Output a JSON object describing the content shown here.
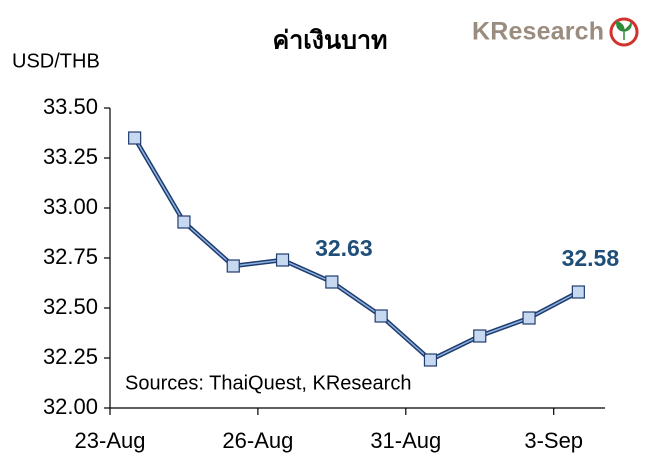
{
  "chart_data": {
    "type": "line",
    "title": "ค่าเงินบาท",
    "y_label": "USD/THB",
    "logo": "KResearch",
    "annotation": "Sources: ThaiQuest, KResearch",
    "categories": [
      "23-Aug",
      null,
      null,
      "26-Aug",
      null,
      null,
      "31-Aug",
      null,
      null,
      "3-Sep"
    ],
    "values": [
      33.35,
      32.93,
      32.71,
      32.74,
      32.63,
      32.46,
      32.24,
      32.36,
      32.45,
      32.58
    ],
    "value_labels": [
      null,
      null,
      null,
      null,
      "32.63",
      null,
      null,
      null,
      null,
      "32.58"
    ],
    "color": "#1f3c6e",
    "marker_color": "#c6d9f1",
    "ylim": [
      32.0,
      33.5
    ],
    "yticks": [
      {
        "value": 32.0,
        "label": "32.00"
      },
      32.25,
      {
        "value": 32.5,
        "label": "32.50"
      },
      32.75,
      {
        "value": 33.0,
        "label": "33.00"
      },
      33.25,
      {
        "value": 33.5,
        "label": "33.50"
      }
    ]
  }
}
